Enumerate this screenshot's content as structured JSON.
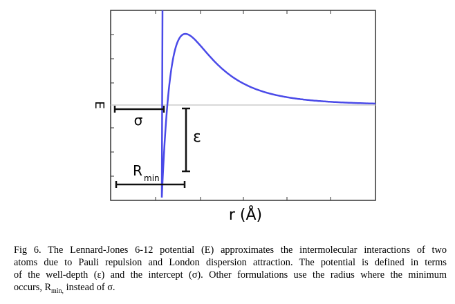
{
  "figure": {
    "y_label": "E",
    "x_label": "r (Å)",
    "sigma_label": "σ",
    "epsilon_label": "ε",
    "rmin_label": {
      "base": "R",
      "sub": "min"
    }
  },
  "caption": {
    "lines": [
      "Fig 6. The Lennard-Jones 6-12 potential (E) approximates the intermolecular interactions of two",
      "atoms due to Pauli repulsion and London dispersion attraction. The potential is defined in terms",
      "of the well-depth (ε) and the intercept (σ). Other formulations use the radius where the minimum"
    ],
    "last_line": {
      "before": "occurs, R",
      "sub": "min,",
      "after": " instead of σ."
    }
  }
}
